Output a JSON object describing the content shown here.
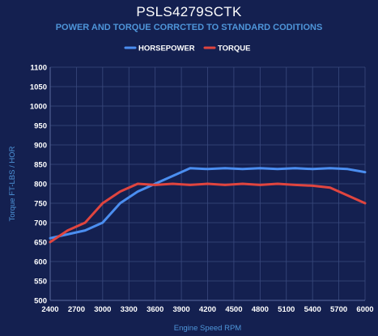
{
  "chart_data": {
    "type": "line",
    "title": "PSLS4279SCTK",
    "subtitle": "POWER AND TORQUE CORRCTED TO STANDARD CODITIONS",
    "xlabel": "Engine Speed RPM",
    "ylabel": "Torque FT-LBS / HOR",
    "xlim": [
      2400,
      6000
    ],
    "ylim": [
      500,
      1100
    ],
    "x_ticks": [
      2400,
      2700,
      3000,
      3300,
      3600,
      3900,
      4200,
      4500,
      4800,
      5100,
      5400,
      5700,
      6000
    ],
    "y_ticks": [
      500,
      550,
      600,
      650,
      700,
      750,
      800,
      850,
      900,
      950,
      1000,
      1050,
      1100
    ],
    "grid": true,
    "legend_position": "top",
    "series": [
      {
        "name": "HORSEPOWER",
        "color": "#4b8ef0",
        "x": [
          2400,
          2600,
          2800,
          3000,
          3200,
          3400,
          3600,
          3800,
          4000,
          4200,
          4400,
          4600,
          4800,
          5000,
          5200,
          5400,
          5600,
          5800,
          6000
        ],
        "y": [
          660,
          670,
          680,
          700,
          750,
          780,
          800,
          820,
          840,
          838,
          840,
          838,
          840,
          838,
          840,
          838,
          840,
          838,
          830
        ]
      },
      {
        "name": "TORQUE",
        "color": "#e0453f",
        "x": [
          2400,
          2600,
          2800,
          3000,
          3200,
          3400,
          3600,
          3800,
          4000,
          4200,
          4400,
          4600,
          4800,
          5000,
          5200,
          5400,
          5600,
          5800,
          6000
        ],
        "y": [
          650,
          680,
          700,
          750,
          780,
          800,
          797,
          800,
          797,
          800,
          797,
          800,
          797,
          800,
          797,
          795,
          790,
          770,
          750
        ]
      }
    ]
  }
}
